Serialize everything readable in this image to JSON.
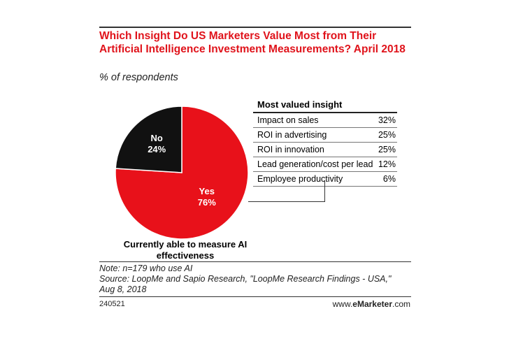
{
  "chart_data": [
    {
      "type": "pie",
      "title": "Which Insight Do US Marketers Value Most from Their Artificial Intelligence Investment Measurements? April 2018",
      "subtitle": "% of respondents",
      "caption": "Currently able to measure AI effectiveness",
      "slices": [
        {
          "label": "Yes",
          "value": 76,
          "display": "76%",
          "color": "#e8111a"
        },
        {
          "label": "No",
          "value": 24,
          "display": "24%",
          "color": "#111111"
        }
      ]
    },
    {
      "type": "table",
      "header": "Most valued insight",
      "rows": [
        {
          "label": "Impact on sales",
          "value": 32,
          "display": "32%"
        },
        {
          "label": "ROI in advertising",
          "value": 25,
          "display": "25%"
        },
        {
          "label": "ROI in innovation",
          "value": 25,
          "display": "25%"
        },
        {
          "label": "Lead generation/cost per lead",
          "value": 12,
          "display": "12%"
        },
        {
          "label": "Employee productivity",
          "value": 6,
          "display": "6%"
        }
      ]
    }
  ],
  "notes": {
    "note": "Note: n=179 who use AI",
    "source_line1": "Source: LoopMe and Sapio Research, \"LoopMe Research Findings - USA,\"",
    "source_line2": "Aug 8, 2018"
  },
  "footer": {
    "chart_id": "240521",
    "brand_prefix": "www.",
    "brand_name": "eMarketer",
    "brand_suffix": ".com"
  }
}
